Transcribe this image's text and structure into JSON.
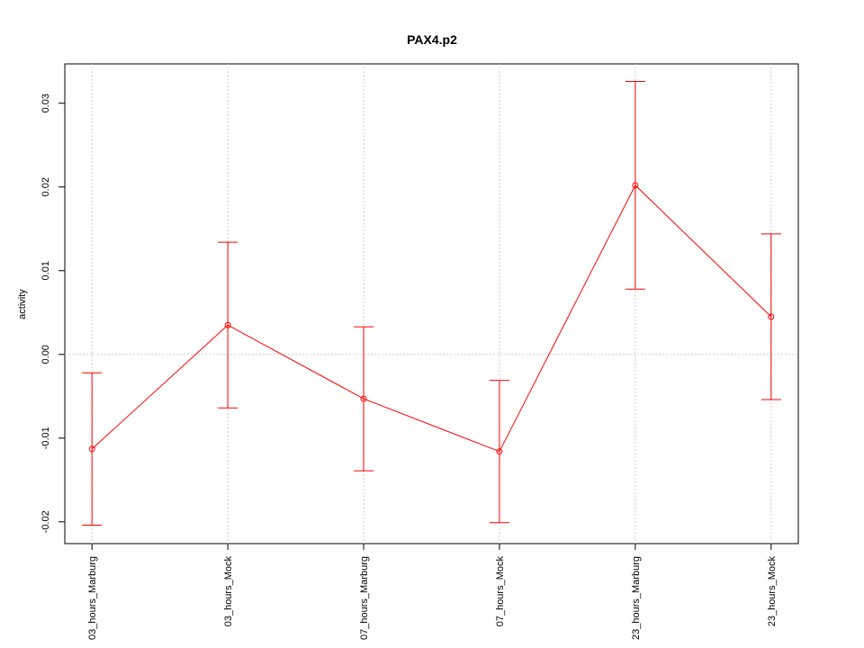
{
  "chart_data": {
    "type": "line",
    "title": "PAX4.p2",
    "y_label": "activity",
    "categories": [
      "03_hours_Marburg",
      "03_hours_Mock",
      "07_hours_Marburg",
      "07_hours_Mock",
      "23_hours_Marburg",
      "23_hours_Mock"
    ],
    "series": [
      {
        "color": "#ff0000",
        "values": [
          -0.0113,
          0.0035,
          -0.0053,
          -0.0116,
          0.0202,
          0.0045
        ],
        "error": [
          0.0091,
          0.0099,
          0.0086,
          0.0085,
          0.0124,
          0.0099
        ]
      }
    ],
    "ylim": [
      -0.0226,
      0.0347
    ],
    "yticks": [
      -0.02,
      -0.01,
      {
        "value": 0,
        "label": "0.00"
      },
      0.01,
      0.02,
      0.03
    ],
    "grid": true,
    "reference_line": 0
  }
}
